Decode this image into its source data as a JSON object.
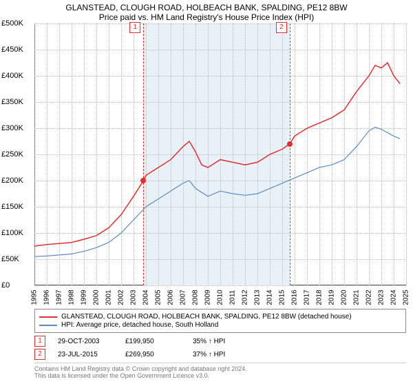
{
  "titles": {
    "main": "GLANSTEAD, CLOUGH ROAD, HOLBEACH BANK, SPALDING, PE12 8BW",
    "sub": "Price paid vs. HM Land Registry's House Price Index (HPI)"
  },
  "chart": {
    "type": "line",
    "background_color": "#ffffff",
    "grid_color": "#bbbbbb",
    "ylim": [
      0,
      500000
    ],
    "ytick_step": 50000,
    "yticks": [
      "£0",
      "£50K",
      "£100K",
      "£150K",
      "£200K",
      "£250K",
      "£300K",
      "£350K",
      "£400K",
      "£450K",
      "£500K"
    ],
    "xlim": [
      1995,
      2025
    ],
    "xticks": [
      1995,
      1996,
      1997,
      1998,
      1999,
      2000,
      2001,
      2002,
      2003,
      2004,
      2005,
      2006,
      2007,
      2008,
      2009,
      2010,
      2011,
      2012,
      2013,
      2014,
      2015,
      2016,
      2017,
      2018,
      2019,
      2020,
      2021,
      2022,
      2023,
      2024,
      2025
    ],
    "shade": {
      "from": 2003.8,
      "to": 2015.6,
      "color": "#e8f0f8"
    },
    "series": [
      {
        "name": "GLANSTEAD, CLOUGH ROAD, HOLBEACH BANK, SPALDING, PE12 8BW (detached house)",
        "color": "#e03030",
        "width": 1.5,
        "data": [
          [
            1995,
            75000
          ],
          [
            1996,
            78000
          ],
          [
            1997,
            80000
          ],
          [
            1998,
            82000
          ],
          [
            1999,
            88000
          ],
          [
            2000,
            95000
          ],
          [
            2001,
            110000
          ],
          [
            2002,
            135000
          ],
          [
            2003,
            170000
          ],
          [
            2003.8,
            199950
          ],
          [
            2004,
            210000
          ],
          [
            2005,
            225000
          ],
          [
            2006,
            240000
          ],
          [
            2007,
            265000
          ],
          [
            2007.5,
            275000
          ],
          [
            2008,
            255000
          ],
          [
            2008.5,
            230000
          ],
          [
            2009,
            225000
          ],
          [
            2010,
            240000
          ],
          [
            2011,
            235000
          ],
          [
            2012,
            230000
          ],
          [
            2013,
            235000
          ],
          [
            2014,
            250000
          ],
          [
            2015,
            260000
          ],
          [
            2015.6,
            269950
          ],
          [
            2016,
            285000
          ],
          [
            2017,
            300000
          ],
          [
            2018,
            310000
          ],
          [
            2019,
            320000
          ],
          [
            2020,
            335000
          ],
          [
            2021,
            370000
          ],
          [
            2022,
            400000
          ],
          [
            2022.5,
            420000
          ],
          [
            2023,
            415000
          ],
          [
            2023.5,
            425000
          ],
          [
            2024,
            400000
          ],
          [
            2024.5,
            385000
          ]
        ]
      },
      {
        "name": "HPI: Average price, detached house, South Holland",
        "color": "#5b8bc4",
        "width": 1.2,
        "data": [
          [
            1995,
            55000
          ],
          [
            1996,
            56000
          ],
          [
            1997,
            58000
          ],
          [
            1998,
            60000
          ],
          [
            1999,
            65000
          ],
          [
            2000,
            72000
          ],
          [
            2001,
            82000
          ],
          [
            2002,
            100000
          ],
          [
            2003,
            125000
          ],
          [
            2004,
            150000
          ],
          [
            2005,
            165000
          ],
          [
            2006,
            180000
          ],
          [
            2007,
            195000
          ],
          [
            2007.5,
            200000
          ],
          [
            2008,
            185000
          ],
          [
            2009,
            170000
          ],
          [
            2010,
            180000
          ],
          [
            2011,
            175000
          ],
          [
            2012,
            172000
          ],
          [
            2013,
            175000
          ],
          [
            2014,
            185000
          ],
          [
            2015,
            195000
          ],
          [
            2016,
            205000
          ],
          [
            2017,
            215000
          ],
          [
            2018,
            225000
          ],
          [
            2019,
            230000
          ],
          [
            2020,
            240000
          ],
          [
            2021,
            265000
          ],
          [
            2022,
            295000
          ],
          [
            2022.5,
            302000
          ],
          [
            2023,
            298000
          ],
          [
            2024,
            285000
          ],
          [
            2024.5,
            280000
          ]
        ]
      }
    ],
    "markers": [
      {
        "n": "1",
        "x": 2003.8,
        "y": 199950
      },
      {
        "n": "2",
        "x": 2015.6,
        "y": 269950
      }
    ]
  },
  "legend": {
    "rows": [
      {
        "label": "GLANSTEAD, CLOUGH ROAD, HOLBEACH BANK, SPALDING, PE12 8BW (detached house)",
        "color": "#e03030"
      },
      {
        "label": "HPI: Average price, detached house, South Holland",
        "color": "#5b8bc4"
      }
    ]
  },
  "transactions": [
    {
      "n": "1",
      "date": "29-OCT-2003",
      "price": "£199,950",
      "pct": "35% ↑ HPI"
    },
    {
      "n": "2",
      "date": "23-JUL-2015",
      "price": "£269,950",
      "pct": "37% ↑ HPI"
    }
  ],
  "footer": {
    "line1": "Contains HM Land Registry data © Crown copyright and database right 2024.",
    "line2": "This data is licensed under the Open Government Licence v3.0."
  }
}
